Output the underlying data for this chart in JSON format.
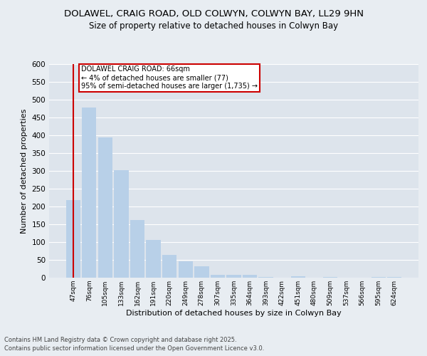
{
  "title1": "DOLAWEL, CRAIG ROAD, OLD COLWYN, COLWYN BAY, LL29 9HN",
  "title2": "Size of property relative to detached houses in Colwyn Bay",
  "xlabel": "Distribution of detached houses by size in Colwyn Bay",
  "ylabel": "Number of detached properties",
  "footnote1": "Contains HM Land Registry data © Crown copyright and database right 2025.",
  "footnote2": "Contains public sector information licensed under the Open Government Licence v3.0.",
  "annotation_title": "DOLAWEL CRAIG ROAD: 66sqm",
  "annotation_line2": "← 4% of detached houses are smaller (77)",
  "annotation_line3": "95% of semi-detached houses are larger (1,735) →",
  "categories": [
    "47sqm",
    "76sqm",
    "105sqm",
    "133sqm",
    "162sqm",
    "191sqm",
    "220sqm",
    "249sqm",
    "278sqm",
    "307sqm",
    "335sqm",
    "364sqm",
    "393sqm",
    "422sqm",
    "451sqm",
    "480sqm",
    "509sqm",
    "537sqm",
    "566sqm",
    "595sqm",
    "624sqm"
  ],
  "values": [
    218,
    478,
    395,
    302,
    162,
    106,
    65,
    47,
    32,
    8,
    8,
    8,
    2,
    0,
    4,
    0,
    2,
    0,
    0,
    2,
    2
  ],
  "bar_color": "#b8d0e8",
  "background_color": "#e8edf2",
  "plot_bg_color": "#dde4ec",
  "grid_color": "#ffffff",
  "annotation_box_color": "#ffffff",
  "annotation_box_edge": "#cc0000",
  "red_line_color": "#cc0000",
  "ylim": [
    0,
    600
  ],
  "yticks": [
    0,
    50,
    100,
    150,
    200,
    250,
    300,
    350,
    400,
    450,
    500,
    550,
    600
  ]
}
